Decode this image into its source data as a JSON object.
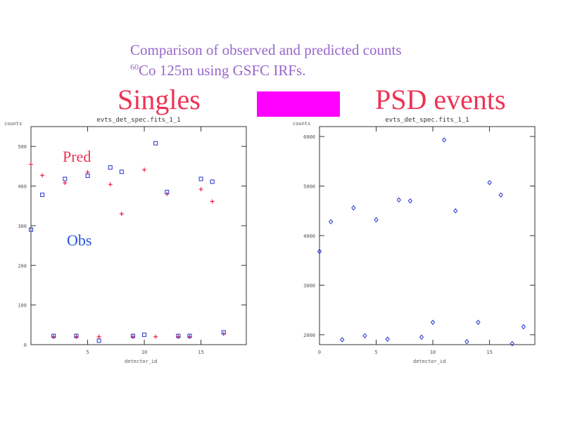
{
  "header": {
    "line1": "Comparison of observed and predicted counts",
    "line2_sup": "60",
    "line2": "Co 125m using GSFC IRFs."
  },
  "titles": {
    "left": "Singles",
    "right": "PSD events"
  },
  "colors": {
    "subtitle": "#9966cc",
    "title": "#ee3355",
    "box": "#ff00ff",
    "pred": "#ee2244",
    "obs": "#2233cc",
    "axis": "#333333"
  },
  "annotations": {
    "pred": "Pred",
    "obs": "Obs"
  },
  "chart_data": [
    {
      "type": "scatter",
      "title": "evts_det_spec.fits_1_1",
      "xlabel": "detector_id",
      "ylabel": "counts",
      "xlim": [
        0,
        19
      ],
      "ylim": [
        0,
        550
      ],
      "x_ticks": [
        {
          "value": 5,
          "label": "5"
        },
        {
          "value": 10,
          "label": "10"
        },
        {
          "value": 15,
          "label": "15"
        }
      ],
      "y_ticks": [
        {
          "value": 0,
          "label": "0"
        },
        {
          "value": 100,
          "label": "100"
        },
        {
          "value": 200,
          "label": "200"
        },
        {
          "value": 300,
          "label": "300"
        },
        {
          "value": 400,
          "label": "400"
        },
        {
          "value": 500,
          "label": "500"
        }
      ],
      "series": [
        {
          "name": "Pred",
          "marker": "plus",
          "x": [
            0,
            1,
            2,
            3,
            4,
            5,
            6,
            7,
            8,
            9,
            10,
            11,
            12,
            13,
            14,
            15,
            16,
            17
          ],
          "y": [
            455,
            427,
            20,
            408,
            20,
            435,
            20,
            404,
            330,
            20,
            441,
            20,
            380,
            20,
            20,
            392,
            361,
            27
          ]
        },
        {
          "name": "Obs",
          "marker": "square",
          "x": [
            0,
            1,
            2,
            3,
            4,
            5,
            6,
            7,
            8,
            9,
            10,
            11,
            12,
            13,
            14,
            15,
            16,
            17
          ],
          "y": [
            290,
            378,
            22,
            418,
            22,
            426,
            10,
            447,
            436,
            22,
            25,
            508,
            385,
            22,
            22,
            418,
            411,
            31
          ]
        }
      ]
    },
    {
      "type": "scatter",
      "title": "evts_det_spec.fits_1_1",
      "xlabel": "detector_id",
      "ylabel": "counts",
      "xlim": [
        0,
        19
      ],
      "ylim": [
        1800,
        6200
      ],
      "x_ticks": [
        {
          "value": 0,
          "label": "0"
        },
        {
          "value": 5,
          "label": "5"
        },
        {
          "value": 10,
          "label": "10"
        },
        {
          "value": 15,
          "label": "15"
        }
      ],
      "y_ticks": [
        {
          "value": 2000,
          "label": "2000"
        },
        {
          "value": 3000,
          "label": "3000"
        },
        {
          "value": 4000,
          "label": "4000"
        },
        {
          "value": 5000,
          "label": "5000"
        },
        {
          "value": 6000,
          "label": "6000"
        }
      ],
      "series": [
        {
          "name": "",
          "marker": "diamond",
          "x": [
            0,
            1,
            2,
            3,
            4,
            5,
            6,
            7,
            8,
            9,
            10,
            11,
            12,
            13,
            14,
            15,
            16,
            17,
            18
          ],
          "y": [
            3680,
            4280,
            1900,
            4560,
            1980,
            4320,
            1910,
            4720,
            4700,
            1950,
            2250,
            5930,
            4500,
            1860,
            2250,
            5070,
            4820,
            1820,
            2160
          ]
        }
      ]
    }
  ]
}
